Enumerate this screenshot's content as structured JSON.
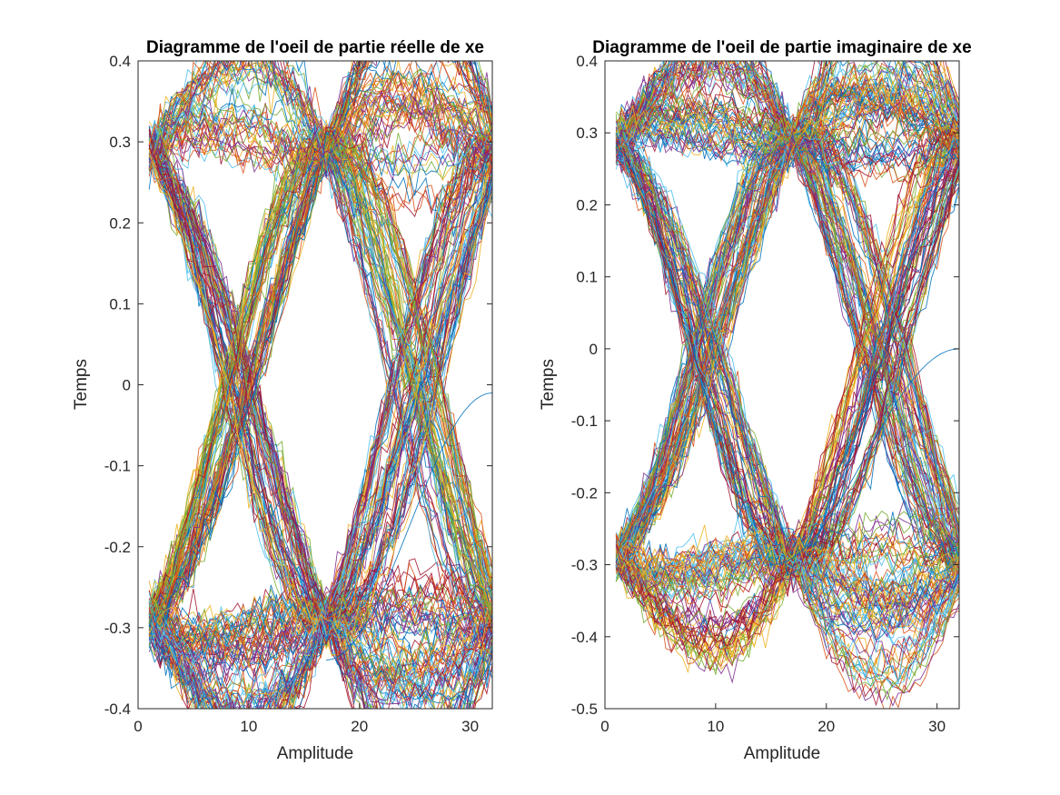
{
  "chart_data": [
    {
      "type": "line",
      "title": "Diagramme de l'oeil de partie réelle de xe",
      "xlabel": "Amplitude",
      "ylabel": "Temps",
      "xlim": [
        0,
        32
      ],
      "ylim": [
        -0.4,
        0.4
      ],
      "xticks": [
        "0",
        "10",
        "20",
        "30"
      ],
      "xtick_values": [
        0,
        10,
        20,
        30
      ],
      "yticks": [
        "-0.4",
        "-0.3",
        "-0.2",
        "-0.1",
        "0",
        "0.1",
        "0.2",
        "0.3",
        "0.4"
      ],
      "ytick_values": [
        -0.4,
        -0.3,
        -0.2,
        -0.1,
        0,
        0.1,
        0.2,
        0.3,
        0.4
      ],
      "grid": false,
      "legend": "none",
      "eye": {
        "samples_per_symbol": 16,
        "levels": [
          -0.29,
          0.29
        ],
        "trace_count": 320,
        "x_range": [
          1,
          32
        ]
      },
      "stray_trace": {
        "from": [
          17,
          -0.34
        ],
        "to": [
          32,
          -0.01
        ]
      }
    },
    {
      "type": "line",
      "title": "Diagramme de l'oeil de partie imaginaire de xe",
      "xlabel": "Amplitude",
      "ylabel": "Temps",
      "xlim": [
        0,
        32
      ],
      "ylim": [
        -0.5,
        0.4
      ],
      "xticks": [
        "0",
        "10",
        "20",
        "30"
      ],
      "xtick_values": [
        0,
        10,
        20,
        30
      ],
      "yticks": [
        "-0.5",
        "-0.4",
        "-0.3",
        "-0.2",
        "-0.1",
        "0",
        "0.1",
        "0.2",
        "0.3",
        "0.4"
      ],
      "ytick_values": [
        -0.5,
        -0.4,
        -0.3,
        -0.2,
        -0.1,
        0,
        0.1,
        0.2,
        0.3,
        0.4
      ],
      "grid": false,
      "legend": "none",
      "eye": {
        "samples_per_symbol": 16,
        "levels": [
          -0.29,
          0.29
        ],
        "trace_count": 320,
        "x_range": [
          1,
          32
        ]
      },
      "stray_trace": {
        "from": [
          15,
          -0.3
        ],
        "to": [
          32,
          0.0
        ]
      }
    }
  ],
  "palette": [
    "#0072BD",
    "#D95319",
    "#EDB120",
    "#7E2F8E",
    "#77AC30",
    "#4DBEEE",
    "#A2142F"
  ]
}
